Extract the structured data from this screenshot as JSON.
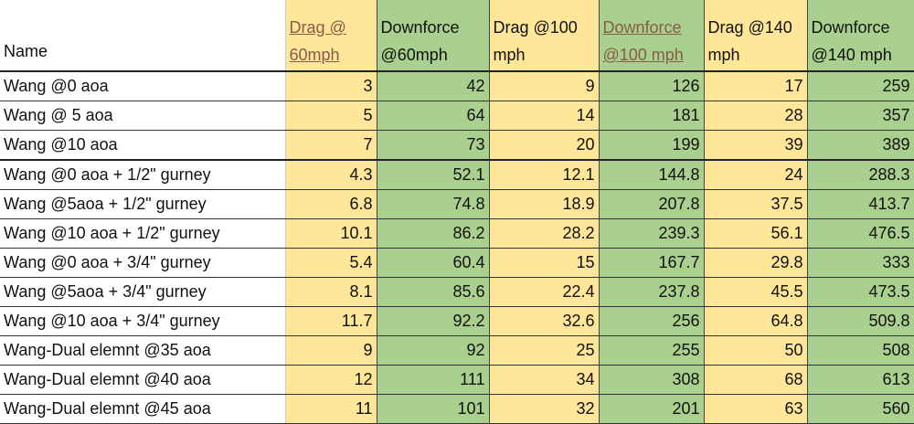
{
  "colors": {
    "drag": "#FFE699",
    "downforce": "#A9D08E"
  },
  "headers": [
    "Name",
    "Drag @ 60mph",
    "Downforce @60mph",
    "Drag @100 mph",
    "Downforce @100 mph",
    "Drag @140 mph",
    "Downforce @140 mph"
  ],
  "rows": [
    [
      "Wang @0 aoa",
      "3",
      "42",
      "9",
      "126",
      "17",
      "259"
    ],
    [
      "Wang @ 5 aoa",
      "5",
      "64",
      "14",
      "181",
      "28",
      "357"
    ],
    [
      "Wang @10 aoa",
      "7",
      "73",
      "20",
      "199",
      "39",
      "389"
    ],
    [
      "Wang @0 aoa + 1/2\" gurney",
      "4.3",
      "52.1",
      "12.1",
      "144.8",
      "24",
      "288.3"
    ],
    [
      "Wang @5aoa + 1/2\" gurney",
      "6.8",
      "74.8",
      "18.9",
      "207.8",
      "37.5",
      "413.7"
    ],
    [
      "Wang @10 aoa + 1/2\" gurney",
      "10.1",
      "86.2",
      "28.2",
      "239.3",
      "56.1",
      "476.5"
    ],
    [
      "Wang @0 aoa + 3/4\" gurney",
      "5.4",
      "60.4",
      "15",
      "167.7",
      "29.8",
      "333"
    ],
    [
      "Wang @5aoa + 3/4\" gurney",
      "8.1",
      "85.6",
      "22.4",
      "237.8",
      "45.5",
      "473.5"
    ],
    [
      "Wang @10 aoa + 3/4\" gurney",
      "11.7",
      "92.2",
      "32.6",
      "256",
      "64.8",
      "509.8"
    ],
    [
      "Wang-Dual elemnt @35 aoa",
      "9",
      "92",
      "25",
      "255",
      "50",
      "508"
    ],
    [
      "Wang-Dual elemnt @40 aoa",
      "12",
      "111",
      "34",
      "308",
      "68",
      "613"
    ],
    [
      "Wang-Dual elemnt @45 aoa",
      "11",
      "101",
      "32",
      "201",
      "63",
      "560"
    ]
  ]
}
